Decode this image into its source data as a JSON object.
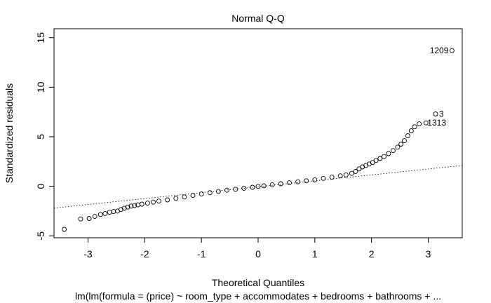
{
  "chart_data": {
    "type": "scatter",
    "title": "Normal Q-Q",
    "xlabel": "Theoretical Quantiles",
    "ylabel": "Standardized residuals",
    "subtitle": "lm(lm(formula = (price) ~ room_type + accommodates + bedrooms + bathrooms + ...",
    "xlim": [
      -3.6,
      3.6
    ],
    "ylim": [
      -5.2,
      15.9
    ],
    "x_ticks": [
      -3,
      -2,
      -1,
      0,
      1,
      2,
      3
    ],
    "y_ticks": [
      -5,
      0,
      5,
      10,
      15
    ],
    "reference_line": {
      "style": "dotted",
      "points": [
        [
          -3.6,
          -2.2
        ],
        [
          3.6,
          2.1
        ]
      ]
    },
    "labeled_points": [
      {
        "label": "1209",
        "x": 3.42,
        "y": 13.7
      },
      {
        "label": "3",
        "x": 3.13,
        "y": 7.3
      },
      {
        "label": "1313",
        "x": 2.96,
        "y": 6.4
      }
    ],
    "points": [
      [
        -3.42,
        -4.35
      ],
      [
        -3.13,
        -3.3
      ],
      [
        -2.98,
        -3.25
      ],
      [
        -2.88,
        -3.05
      ],
      [
        -2.78,
        -2.85
      ],
      [
        -2.7,
        -2.75
      ],
      [
        -2.62,
        -2.62
      ],
      [
        -2.55,
        -2.55
      ],
      [
        -2.48,
        -2.5
      ],
      [
        -2.42,
        -2.35
      ],
      [
        -2.36,
        -2.22
      ],
      [
        -2.3,
        -2.1
      ],
      [
        -2.24,
        -2.0
      ],
      [
        -2.18,
        -1.95
      ],
      [
        -2.12,
        -1.88
      ],
      [
        -2.05,
        -1.8
      ],
      [
        -1.95,
        -1.7
      ],
      [
        -1.85,
        -1.6
      ],
      [
        -1.75,
        -1.5
      ],
      [
        -1.6,
        -1.38
      ],
      [
        -1.45,
        -1.22
      ],
      [
        -1.3,
        -1.08
      ],
      [
        -1.15,
        -0.92
      ],
      [
        -1.0,
        -0.78
      ],
      [
        -0.85,
        -0.65
      ],
      [
        -0.7,
        -0.52
      ],
      [
        -0.55,
        -0.4
      ],
      [
        -0.4,
        -0.3
      ],
      [
        -0.25,
        -0.2
      ],
      [
        -0.1,
        -0.1
      ],
      [
        0.0,
        -0.02
      ],
      [
        0.1,
        0.05
      ],
      [
        0.25,
        0.15
      ],
      [
        0.4,
        0.25
      ],
      [
        0.55,
        0.35
      ],
      [
        0.7,
        0.45
      ],
      [
        0.85,
        0.55
      ],
      [
        1.0,
        0.65
      ],
      [
        1.15,
        0.8
      ],
      [
        1.3,
        0.92
      ],
      [
        1.45,
        1.05
      ],
      [
        1.55,
        1.15
      ],
      [
        1.65,
        1.3
      ],
      [
        1.72,
        1.5
      ],
      [
        1.78,
        1.75
      ],
      [
        1.84,
        1.95
      ],
      [
        1.9,
        2.1
      ],
      [
        1.96,
        2.25
      ],
      [
        2.02,
        2.4
      ],
      [
        2.08,
        2.6
      ],
      [
        2.15,
        2.8
      ],
      [
        2.22,
        3.0
      ],
      [
        2.3,
        3.3
      ],
      [
        2.38,
        3.6
      ],
      [
        2.46,
        3.95
      ],
      [
        2.52,
        4.25
      ],
      [
        2.58,
        4.6
      ],
      [
        2.64,
        5.1
      ],
      [
        2.7,
        5.6
      ],
      [
        2.76,
        6.0
      ],
      [
        2.84,
        6.3
      ],
      [
        2.96,
        6.4
      ],
      [
        3.13,
        7.3
      ],
      [
        3.42,
        13.7
      ]
    ]
  }
}
